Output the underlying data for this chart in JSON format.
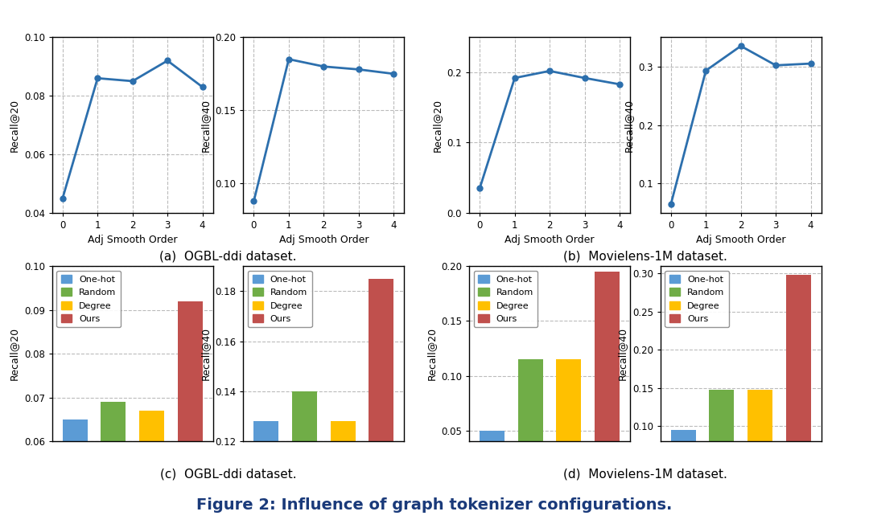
{
  "line_plots": {
    "ddi": {
      "recall20": {
        "x": [
          0,
          1,
          2,
          3,
          4
        ],
        "y": [
          0.045,
          0.086,
          0.085,
          0.092,
          0.083
        ],
        "ylabel": "Recall@20",
        "ylim": [
          0.04,
          0.1
        ],
        "yticks": [
          0.04,
          0.06,
          0.08,
          0.1
        ]
      },
      "recall40": {
        "x": [
          0,
          1,
          2,
          3,
          4
        ],
        "y": [
          0.088,
          0.185,
          0.18,
          0.178,
          0.175
        ],
        "ylabel": "Recall@40",
        "ylim": [
          0.08,
          0.2
        ],
        "yticks": [
          0.1,
          0.15,
          0.2
        ]
      }
    },
    "movielens": {
      "recall20": {
        "x": [
          0,
          1,
          2,
          3,
          4
        ],
        "y": [
          0.035,
          0.192,
          0.202,
          0.192,
          0.183
        ],
        "ylabel": "Recall@20",
        "ylim": [
          0.0,
          0.25
        ],
        "yticks": [
          0.0,
          0.1,
          0.2
        ]
      },
      "recall40": {
        "x": [
          0,
          1,
          2,
          3,
          4
        ],
        "y": [
          0.065,
          0.293,
          0.335,
          0.302,
          0.305
        ],
        "ylabel": "Recall@40",
        "ylim": [
          0.05,
          0.35
        ],
        "yticks": [
          0.1,
          0.2,
          0.3
        ]
      }
    }
  },
  "bar_plots": {
    "ddi": {
      "recall20": {
        "categories": [
          "One-hot",
          "Random",
          "Degree",
          "Ours"
        ],
        "values": [
          0.065,
          0.069,
          0.067,
          0.092
        ],
        "colors": [
          "#5b9bd5",
          "#70ad47",
          "#ffc000",
          "#c0504d"
        ],
        "ylabel": "Recall@20",
        "ylim": [
          0.06,
          0.1
        ],
        "yticks": [
          0.06,
          0.07,
          0.08,
          0.09,
          0.1
        ]
      },
      "recall40": {
        "categories": [
          "One-hot",
          "Random",
          "Degree",
          "Ours"
        ],
        "values": [
          0.128,
          0.14,
          0.128,
          0.185
        ],
        "colors": [
          "#5b9bd5",
          "#70ad47",
          "#ffc000",
          "#c0504d"
        ],
        "ylabel": "Recall@40",
        "ylim": [
          0.12,
          0.19
        ],
        "yticks": [
          0.12,
          0.14,
          0.16,
          0.18
        ]
      }
    },
    "movielens": {
      "recall20": {
        "categories": [
          "One-hot",
          "Random",
          "Degree",
          "Ours"
        ],
        "values": [
          0.05,
          0.115,
          0.115,
          0.195
        ],
        "colors": [
          "#5b9bd5",
          "#70ad47",
          "#ffc000",
          "#c0504d"
        ],
        "ylabel": "Recall@20",
        "ylim": [
          0.04,
          0.2
        ],
        "yticks": [
          0.05,
          0.1,
          0.15,
          0.2
        ]
      },
      "recall40": {
        "categories": [
          "One-hot",
          "Random",
          "Degree",
          "Ours"
        ],
        "values": [
          0.095,
          0.148,
          0.148,
          0.298
        ],
        "colors": [
          "#5b9bd5",
          "#70ad47",
          "#ffc000",
          "#c0504d"
        ],
        "ylabel": "Recall@40",
        "ylim": [
          0.08,
          0.31
        ],
        "yticks": [
          0.1,
          0.15,
          0.2,
          0.25,
          0.3
        ]
      }
    }
  },
  "line_color": "#2c6fad",
  "line_marker": "o",
  "line_markersize": 5,
  "line_linewidth": 2.0,
  "xlabel": "Adj Smooth Order",
  "caption_a": "(a)  OGBL-ddi dataset.",
  "caption_b": "(b)  Movielens-1M dataset.",
  "caption_c": "(c)  OGBL-ddi dataset.",
  "caption_d": "(d)  Movielens-1M dataset.",
  "figure_caption": "Figure 2: Influence of graph tokenizer configurations.",
  "legend_labels": [
    "One-hot",
    "Random",
    "Degree",
    "Ours"
  ],
  "background_color": "#ffffff"
}
